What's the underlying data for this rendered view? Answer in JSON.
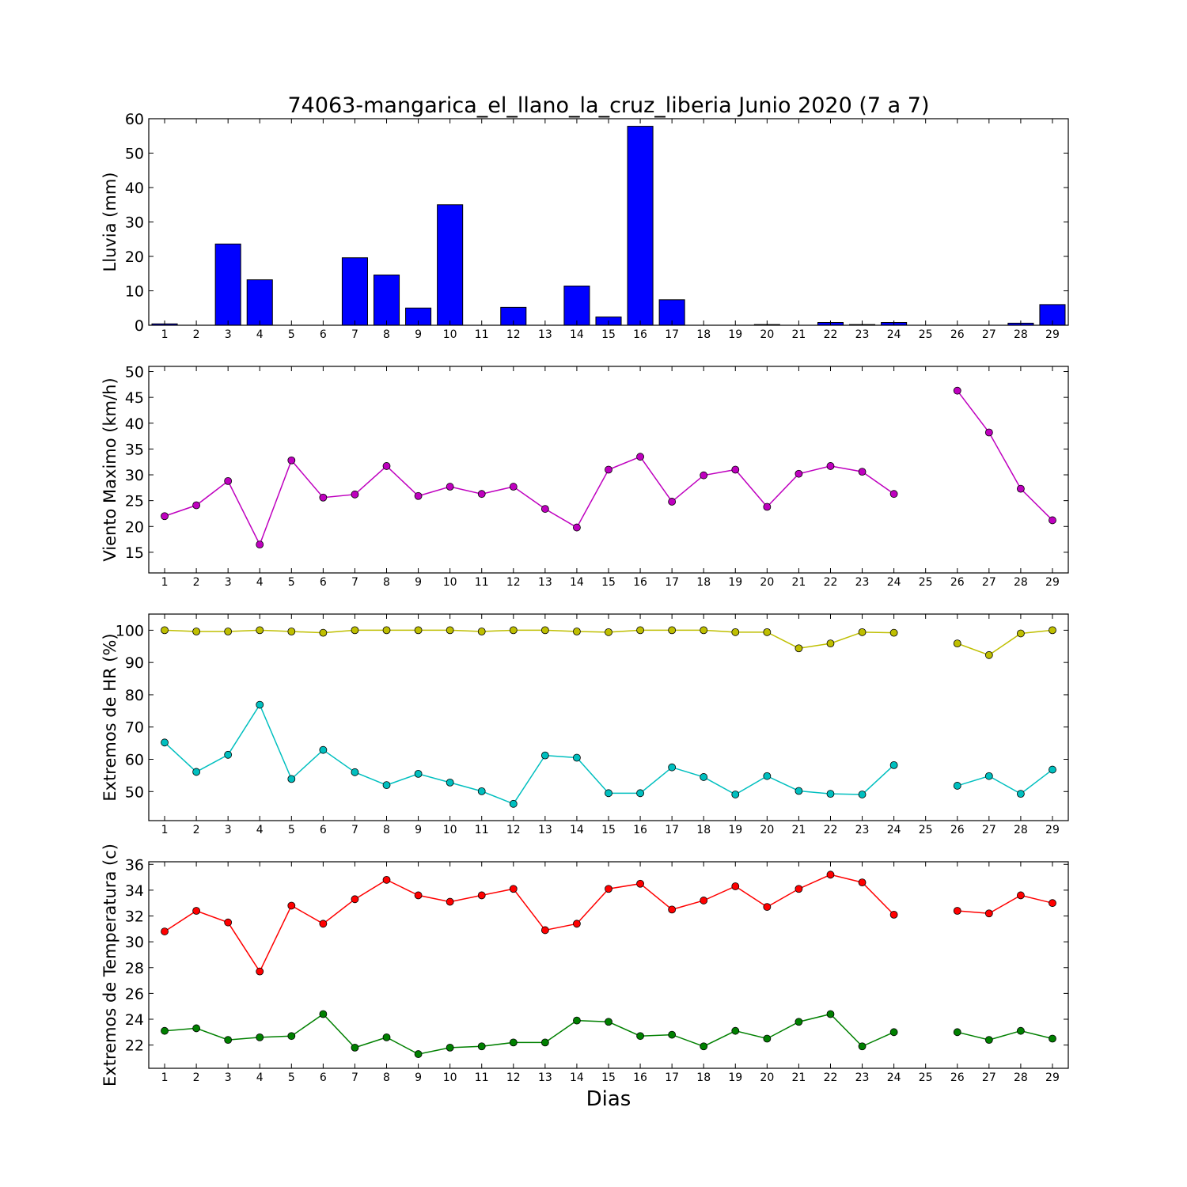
{
  "chart_data": [
    {
      "type": "bar",
      "title": "74063-mangarica_el_llano_la_cruz_liberia Junio 2020  (7 a 7)",
      "ylabel": "Lluvia (mm)",
      "xlabel": "",
      "x": [
        1,
        2,
        3,
        4,
        5,
        6,
        7,
        8,
        9,
        10,
        11,
        12,
        13,
        14,
        15,
        16,
        17,
        18,
        19,
        20,
        21,
        22,
        23,
        24,
        25,
        26,
        27,
        28,
        29
      ],
      "xlim": [
        0.5,
        29.5
      ],
      "ylim": [
        0,
        60
      ],
      "yticks": [
        0,
        10,
        20,
        30,
        40,
        50,
        60
      ],
      "grid": false,
      "series": [
        {
          "color": "#0000ff",
          "values": [
            0.4,
            0,
            23.6,
            13.2,
            0,
            0,
            19.6,
            14.6,
            5.0,
            35.0,
            0,
            5.2,
            0,
            11.4,
            2.4,
            57.8,
            7.4,
            0,
            0,
            0.2,
            0,
            0.8,
            0.2,
            0.8,
            0,
            0,
            0,
            0.6,
            6.0
          ]
        }
      ]
    },
    {
      "type": "line",
      "title": "",
      "ylabel": "Viento Maximo (km/h)",
      "xlabel": "",
      "x": [
        1,
        2,
        3,
        4,
        5,
        6,
        7,
        8,
        9,
        10,
        11,
        12,
        13,
        14,
        15,
        16,
        17,
        18,
        19,
        20,
        21,
        22,
        23,
        24,
        25,
        26,
        27,
        28,
        29
      ],
      "xlim": [
        0.5,
        29.5
      ],
      "ylim": [
        11,
        51
      ],
      "yticks": [
        15,
        20,
        25,
        30,
        35,
        40,
        45,
        50
      ],
      "grid": false,
      "series": [
        {
          "color": "#bf00bf",
          "values": [
            22.0,
            24.1,
            28.8,
            16.5,
            32.8,
            25.6,
            26.2,
            31.7,
            25.9,
            27.7,
            26.3,
            27.7,
            23.4,
            19.8,
            31.0,
            33.5,
            24.8,
            29.9,
            31.0,
            23.8,
            30.2,
            31.7,
            30.6,
            26.3,
            null,
            46.3,
            38.2,
            27.3,
            21.2
          ]
        }
      ]
    },
    {
      "type": "line",
      "title": "",
      "ylabel": "Extremos de HR (%)",
      "xlabel": "",
      "x": [
        1,
        2,
        3,
        4,
        5,
        6,
        7,
        8,
        9,
        10,
        11,
        12,
        13,
        14,
        15,
        16,
        17,
        18,
        19,
        20,
        21,
        22,
        23,
        24,
        25,
        26,
        27,
        28,
        29
      ],
      "xlim": [
        0.5,
        29.5
      ],
      "ylim": [
        41,
        105
      ],
      "yticks": [
        50,
        60,
        70,
        80,
        90,
        100
      ],
      "grid": false,
      "series": [
        {
          "color": "#bfbf00",
          "values": [
            100,
            99.6,
            99.6,
            100,
            99.6,
            99.2,
            100,
            100,
            100,
            100,
            99.6,
            100,
            100,
            99.6,
            99.4,
            100,
            100,
            100,
            99.4,
            99.4,
            94.4,
            95.9,
            99.4,
            99.2,
            null,
            95.9,
            92.3,
            99.0,
            100
          ]
        },
        {
          "color": "#00bfbf",
          "values": [
            65.2,
            56.1,
            61.4,
            76.9,
            53.9,
            62.9,
            56.0,
            52.0,
            55.5,
            52.8,
            50.1,
            46.2,
            61.2,
            60.5,
            49.5,
            49.5,
            57.5,
            54.5,
            49.1,
            54.8,
            50.2,
            49.3,
            49.1,
            58.2,
            null,
            51.8,
            54.8,
            49.3,
            56.8
          ]
        }
      ]
    },
    {
      "type": "line",
      "title": "",
      "ylabel": "Extremos de Temperatura (c)",
      "xlabel": "Dias",
      "x": [
        1,
        2,
        3,
        4,
        5,
        6,
        7,
        8,
        9,
        10,
        11,
        12,
        13,
        14,
        15,
        16,
        17,
        18,
        19,
        20,
        21,
        22,
        23,
        24,
        25,
        26,
        27,
        28,
        29
      ],
      "xlim": [
        0.5,
        29.5
      ],
      "ylim": [
        20.2,
        36.2
      ],
      "yticks": [
        22,
        24,
        26,
        28,
        30,
        32,
        34,
        36
      ],
      "grid": false,
      "series": [
        {
          "color": "#ff0000",
          "values": [
            30.8,
            32.4,
            31.5,
            27.7,
            32.8,
            31.4,
            33.3,
            34.8,
            33.6,
            33.1,
            33.6,
            34.1,
            30.9,
            31.4,
            34.1,
            34.5,
            32.5,
            33.2,
            34.3,
            32.7,
            34.1,
            35.2,
            34.6,
            32.1,
            null,
            32.4,
            32.2,
            33.6,
            33.0
          ]
        },
        {
          "color": "#008000",
          "values": [
            23.1,
            23.3,
            22.4,
            22.6,
            22.7,
            24.4,
            21.8,
            22.6,
            21.3,
            21.8,
            21.9,
            22.2,
            22.2,
            23.9,
            23.8,
            22.7,
            22.8,
            21.9,
            23.1,
            22.5,
            23.8,
            24.4,
            21.9,
            23.0,
            null,
            23.0,
            22.4,
            23.1,
            22.5
          ]
        }
      ]
    }
  ]
}
